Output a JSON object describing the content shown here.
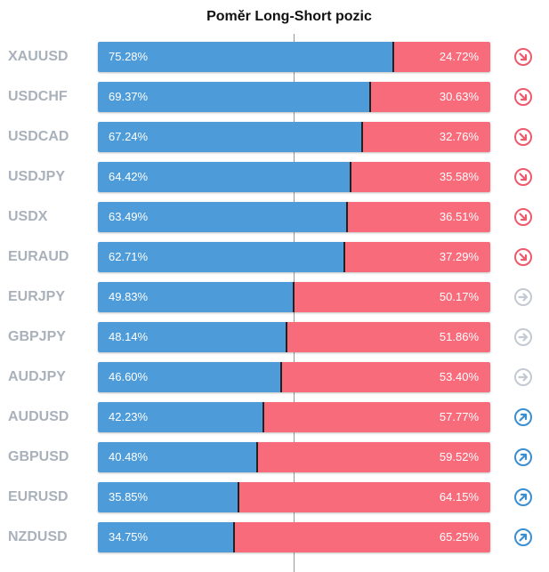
{
  "chart_data": {
    "type": "bar",
    "title": "Poměr Long-Short pozic",
    "categories": [
      "XAUUSD",
      "USDCHF",
      "USDCAD",
      "USDJPY",
      "USDX",
      "EURAUD",
      "EURJPY",
      "GBPJPY",
      "AUDJPY",
      "AUDUSD",
      "GBPUSD",
      "EURUSD",
      "NZDUSD"
    ],
    "series": [
      {
        "values": [
          75.28,
          69.37,
          67.24,
          64.42,
          63.49,
          62.71,
          49.83,
          48.14,
          46.6,
          42.23,
          40.48,
          35.85,
          34.75
        ]
      },
      {
        "values": [
          24.72,
          30.63,
          32.76,
          35.58,
          36.51,
          37.29,
          50.17,
          51.86,
          53.4,
          57.77,
          59.52,
          64.15,
          65.25
        ]
      }
    ],
    "long_labels": [
      "75.28%",
      "69.37%",
      "67.24%",
      "64.42%",
      "63.49%",
      "62.71%",
      "49.83%",
      "48.14%",
      "46.60%",
      "42.23%",
      "40.48%",
      "35.85%",
      "34.75%"
    ],
    "short_labels": [
      "24.72%",
      "30.63%",
      "32.76%",
      "35.58%",
      "36.51%",
      "37.29%",
      "50.17%",
      "51.86%",
      "53.40%",
      "57.77%",
      "59.52%",
      "64.15%",
      "65.25%"
    ],
    "signals": [
      "down",
      "down",
      "down",
      "down",
      "down",
      "down",
      "neutral",
      "neutral",
      "neutral",
      "up",
      "up",
      "up",
      "up"
    ],
    "ylim": [
      0,
      100
    ],
    "colors": {
      "long": "#4d9bd8",
      "short": "#f86b7b",
      "down": "#ee5a6c",
      "neutral": "#c4cad1",
      "up": "#3b8fd0",
      "symbol": "#a9b1bb"
    }
  }
}
